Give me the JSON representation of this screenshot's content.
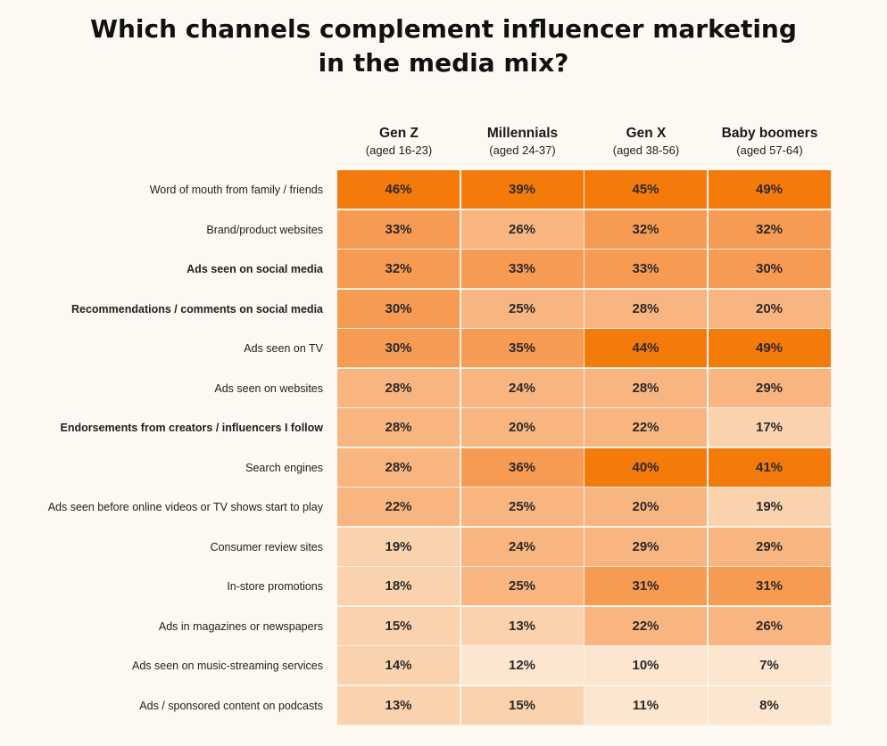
{
  "title_lines": [
    "Which channels complement influencer marketing",
    "in the media mix?"
  ],
  "chart_data": {
    "type": "heatmap",
    "title": "Which channels complement influencer marketing in the media mix?",
    "columns": [
      {
        "name": "Gen Z",
        "age": "(aged 16-23)"
      },
      {
        "name": "Millennials",
        "age": "(aged 24-37)"
      },
      {
        "name": "Gen X",
        "age": "(aged 38-56)"
      },
      {
        "name": "Baby boomers",
        "age": "(aged 57-64)"
      }
    ],
    "rows": [
      {
        "label": "Word of mouth from family / friends",
        "bold": false,
        "values": [
          46,
          39,
          45,
          49
        ]
      },
      {
        "label": "Brand/product websites",
        "bold": false,
        "values": [
          33,
          26,
          32,
          32
        ]
      },
      {
        "label": "Ads seen on social media",
        "bold": true,
        "values": [
          32,
          33,
          33,
          30
        ]
      },
      {
        "label": "Recommendations / comments on social media",
        "bold": true,
        "values": [
          30,
          25,
          28,
          20
        ]
      },
      {
        "label": "Ads seen on TV",
        "bold": false,
        "values": [
          30,
          35,
          44,
          49
        ]
      },
      {
        "label": "Ads seen on websites",
        "bold": false,
        "values": [
          28,
          24,
          28,
          29
        ]
      },
      {
        "label": "Endorsements from creators / influencers I follow",
        "bold": true,
        "values": [
          28,
          20,
          22,
          17
        ]
      },
      {
        "label": "Search engines",
        "bold": false,
        "values": [
          28,
          36,
          40,
          41
        ]
      },
      {
        "label": "Ads seen before online videos or TV shows start to play",
        "bold": false,
        "values": [
          22,
          25,
          20,
          19
        ]
      },
      {
        "label": "Consumer review sites",
        "bold": false,
        "values": [
          19,
          24,
          29,
          29
        ]
      },
      {
        "label": "In-store promotions",
        "bold": false,
        "values": [
          18,
          25,
          31,
          31
        ]
      },
      {
        "label": "Ads in magazines or newspapers",
        "bold": false,
        "values": [
          15,
          13,
          22,
          26
        ]
      },
      {
        "label": "Ads seen on music-streaming services",
        "bold": false,
        "values": [
          14,
          12,
          10,
          7
        ]
      },
      {
        "label": "Ads / sponsored content on podcasts",
        "bold": false,
        "values": [
          13,
          15,
          11,
          8
        ]
      }
    ],
    "value_suffix": "%",
    "colors": {
      "high": "#f47a0a",
      "mid_high": "#f79a52",
      "mid": "#f9b57f",
      "low": "#fbd2ae",
      "lowest": "#fde6cf"
    }
  }
}
